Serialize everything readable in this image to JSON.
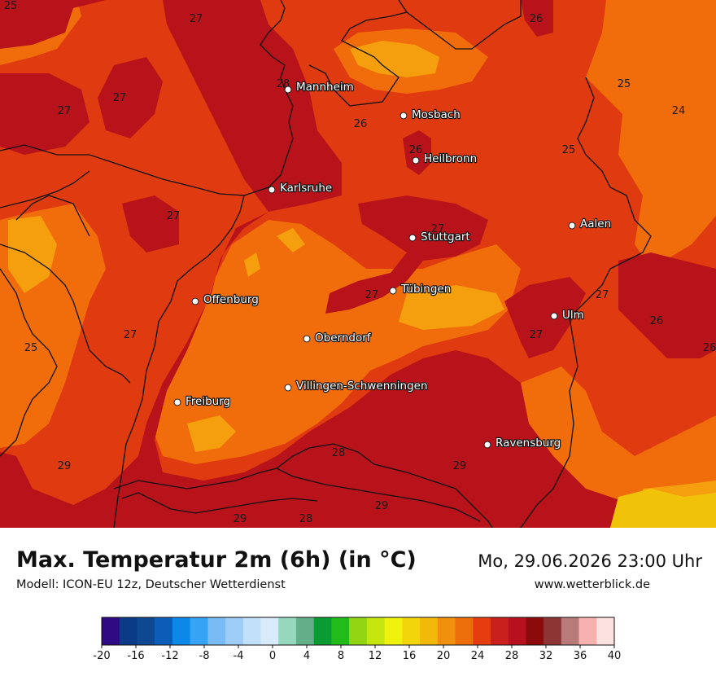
{
  "title": "Max. Temperatur 2m (6h) (in °C)",
  "model": "Modell: ICON-EU 12z, Deutscher Wetterdienst",
  "datetime": "Mo, 29.06.2026 23:00 Uhr",
  "website": "www.wetterblick.de",
  "cities": [
    {
      "name": "Mannheim"
    },
    {
      "name": "Mosbach"
    },
    {
      "name": "Heilbronn"
    },
    {
      "name": "Karlsruhe"
    },
    {
      "name": "Aalen"
    },
    {
      "name": "Stuttgart"
    },
    {
      "name": "Tübingen"
    },
    {
      "name": "Offenburg"
    },
    {
      "name": "Ulm"
    },
    {
      "name": "Oberndorf"
    },
    {
      "name": "Villingen-Schwenningen"
    },
    {
      "name": "Freiburg"
    },
    {
      "name": "Ravensburg"
    }
  ],
  "temperature_labels": [
    "27",
    "26",
    "27",
    "27",
    "28",
    "26",
    "25",
    "24",
    "26",
    "25",
    "27",
    "27",
    "27",
    "27",
    "25",
    "27",
    "27",
    "26",
    "26",
    "25",
    "28",
    "29",
    "29",
    "29",
    "29",
    "28"
  ],
  "colors": {
    "t24": "#f16d0c",
    "t26": "#e03a10",
    "t28": "#c71a13",
    "t30": "#b3101a",
    "t22": "#f59f0e",
    "t20": "#f0c20a",
    "border": "#111111"
  },
  "legend": {
    "ticks": [
      "-20",
      "-16",
      "-12",
      "-8",
      "-4",
      "0",
      "4",
      "8",
      "12",
      "16",
      "20",
      "24",
      "28",
      "32",
      "36",
      "40"
    ],
    "colors": [
      "#2f0a83",
      "#0b3a87",
      "#0d4890",
      "#0b5db8",
      "#0c88e8",
      "#36a3f5",
      "#79bcf5",
      "#9dccf7",
      "#c3e0fa",
      "#d9ebfb",
      "#95d8bd",
      "#64ae8a",
      "#0b9b33",
      "#22bb19",
      "#93d513",
      "#c5e50f",
      "#eef20c",
      "#f2d60b",
      "#f2b90b",
      "#f0900c",
      "#ed6f0c",
      "#e63d10",
      "#c9201d",
      "#b7101f",
      "#8d0a0a",
      "#8d3434",
      "#b97a7a",
      "#f7b2b0",
      "#fde0e0"
    ]
  }
}
